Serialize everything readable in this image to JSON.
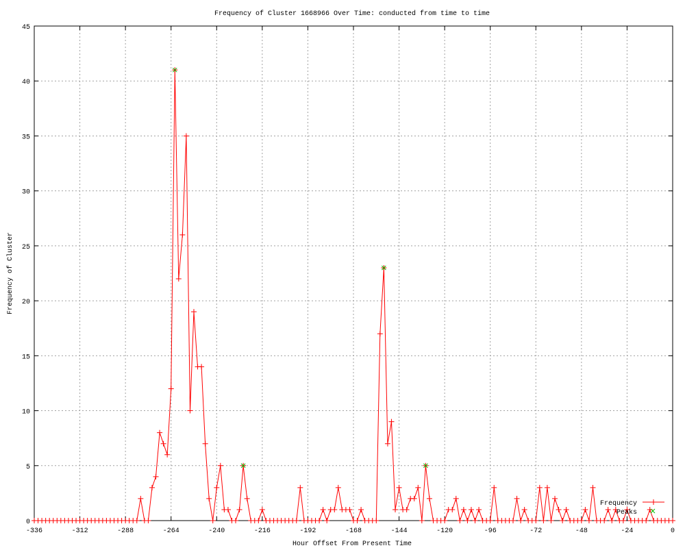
{
  "chart_data": {
    "type": "line",
    "title": "Frequency of Cluster 1668966 Over Time: conducted from time to time",
    "xlabel": "Hour Offset From Present Time",
    "ylabel": "Frequency of Cluster",
    "xlim": [
      -336,
      0
    ],
    "ylim": [
      0,
      45
    ],
    "xticks": [
      -336,
      -312,
      -288,
      -264,
      -240,
      -216,
      -192,
      -168,
      -144,
      -120,
      -96,
      -72,
      -48,
      -24,
      0
    ],
    "yticks": [
      0,
      5,
      10,
      15,
      20,
      25,
      30,
      35,
      40,
      45
    ],
    "grid": true,
    "legend_position": "bottom-right",
    "series": [
      {
        "name": "Frequency",
        "color": "#ff0000",
        "marker": "plus",
        "x": [
          -336,
          -334,
          -332,
          -330,
          -328,
          -326,
          -324,
          -322,
          -320,
          -318,
          -316,
          -314,
          -312,
          -310,
          -308,
          -306,
          -304,
          -302,
          -300,
          -298,
          -296,
          -294,
          -292,
          -290,
          -288,
          -286,
          -284,
          -282,
          -280,
          -278,
          -276,
          -274,
          -272,
          -270,
          -268,
          -266,
          -264,
          -262,
          -260,
          -258,
          -256,
          -254,
          -252,
          -250,
          -248,
          -246,
          -244,
          -242,
          -240,
          -238,
          -236,
          -234,
          -232,
          -230,
          -228,
          -226,
          -224,
          -222,
          -220,
          -218,
          -216,
          -214,
          -212,
          -210,
          -208,
          -206,
          -204,
          -202,
          -200,
          -198,
          -196,
          -194,
          -192,
          -190,
          -188,
          -186,
          -184,
          -182,
          -180,
          -178,
          -176,
          -174,
          -172,
          -170,
          -168,
          -166,
          -164,
          -162,
          -160,
          -158,
          -156,
          -154,
          -152,
          -150,
          -148,
          -146,
          -144,
          -142,
          -140,
          -138,
          -136,
          -134,
          -132,
          -130,
          -128,
          -126,
          -124,
          -122,
          -120,
          -118,
          -116,
          -114,
          -112,
          -110,
          -108,
          -106,
          -104,
          -102,
          -100,
          -98,
          -96,
          -94,
          -92,
          -90,
          -88,
          -86,
          -84,
          -82,
          -80,
          -78,
          -76,
          -74,
          -72,
          -70,
          -68,
          -66,
          -64,
          -62,
          -60,
          -58,
          -56,
          -54,
          -52,
          -50,
          -48,
          -46,
          -44,
          -42,
          -40,
          -38,
          -36,
          -34,
          -32,
          -30,
          -28,
          -26,
          -24,
          -22,
          -20,
          -18,
          -16,
          -14,
          -12,
          -10,
          -8,
          -6,
          -4,
          -2,
          0
        ],
        "y": [
          0,
          0,
          0,
          0,
          0,
          0,
          0,
          0,
          0,
          0,
          0,
          0,
          0,
          0,
          0,
          0,
          0,
          0,
          0,
          0,
          0,
          0,
          0,
          0,
          0,
          0,
          0,
          0,
          2,
          0,
          0,
          3,
          4,
          8,
          7,
          6,
          12,
          41,
          22,
          26,
          35,
          10,
          19,
          14,
          14,
          7,
          2,
          0,
          3,
          5,
          1,
          1,
          0,
          0,
          1,
          5,
          2,
          0,
          0,
          0,
          1,
          0,
          0,
          0,
          0,
          0,
          0,
          0,
          0,
          0,
          3,
          0,
          0,
          0,
          0,
          0,
          1,
          0,
          1,
          1,
          3,
          1,
          1,
          1,
          0,
          0,
          1,
          0,
          0,
          0,
          0,
          17,
          23,
          7,
          9,
          1,
          3,
          1,
          1,
          2,
          2,
          3,
          0,
          5,
          2,
          0,
          0,
          0,
          0,
          1,
          1,
          2,
          0,
          1,
          0,
          1,
          0,
          1,
          0,
          0,
          0,
          3,
          0,
          0,
          0,
          0,
          0,
          2,
          0,
          1,
          0,
          0,
          0,
          3,
          0,
          3,
          0,
          2,
          1,
          0,
          1,
          0,
          0,
          0,
          0,
          1,
          0,
          3,
          0,
          0,
          0,
          1,
          0,
          1,
          0,
          0,
          1,
          0,
          0,
          0,
          0,
          0,
          1,
          0,
          0,
          0,
          0,
          0,
          0
        ]
      },
      {
        "name": "Peaks",
        "color": "#00c000",
        "marker": "x",
        "x": [
          -262,
          -226,
          -152,
          -130
        ],
        "y": [
          41,
          5,
          23,
          5
        ]
      }
    ]
  }
}
